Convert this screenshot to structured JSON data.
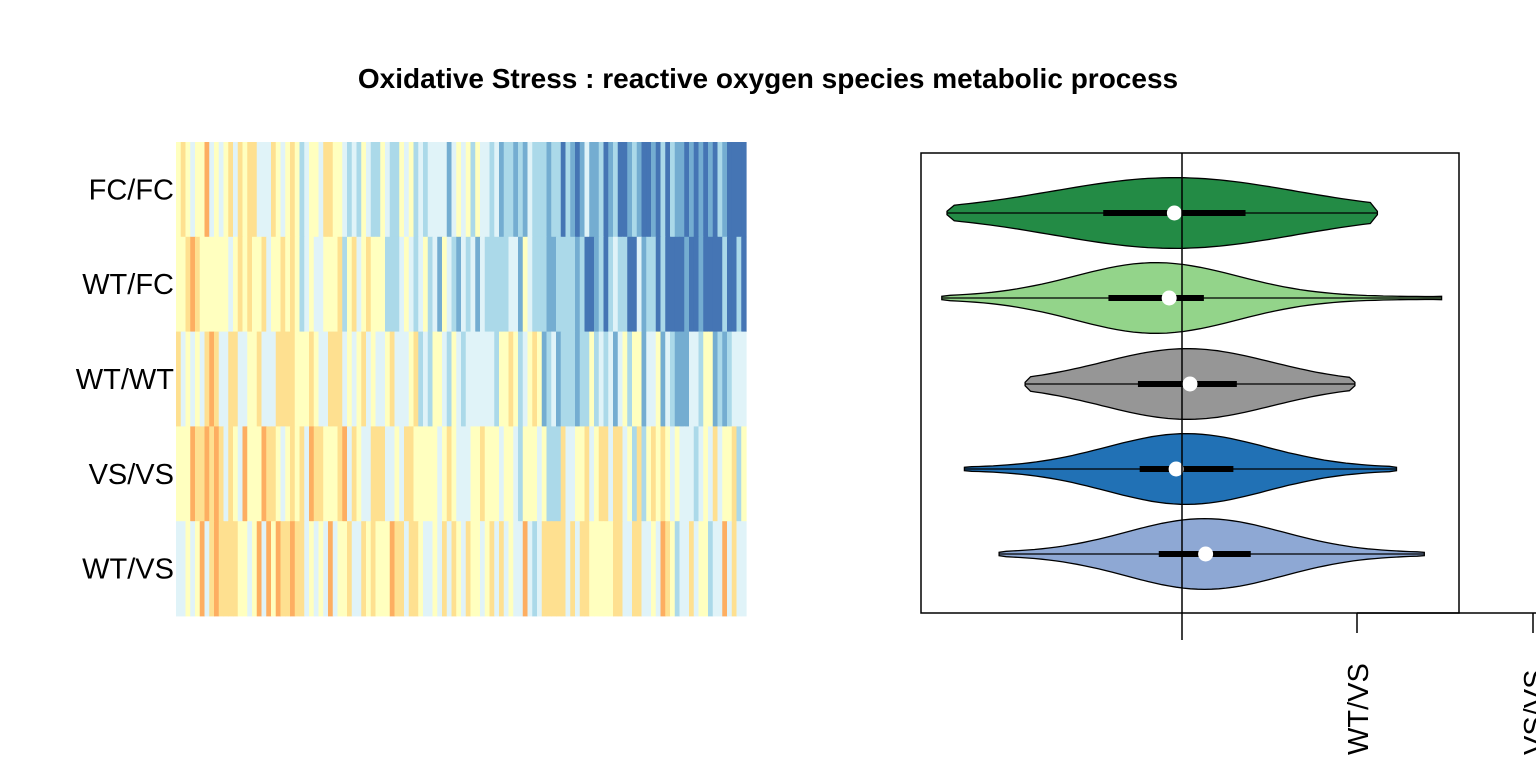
{
  "title": "Oxidative Stress : reactive oxygen species metabolic process",
  "palette": {
    "diverging": [
      "#d73027",
      "#f46d43",
      "#fdae61",
      "#fee090",
      "#ffffbf",
      "#e0f3f8",
      "#abd9e9",
      "#74add1",
      "#4575b4"
    ]
  },
  "chart_data": [
    {
      "type": "heatmap",
      "rows": [
        "FC/FC",
        "WT/FC",
        "WT/WT",
        "VS/VS",
        "WT/VS"
      ],
      "n_columns": 120,
      "values": "per-gene expression scores (one stripe per gene); predominantly warm (high) values on the left, cool (low) values on the right for FC/FC and WT/FC",
      "color_scale": "RdYlBu diverging"
    },
    {
      "type": "violin",
      "orientation": "horizontal",
      "series": [
        {
          "name": "FC/FC",
          "color": "#238b45",
          "min": -1.35,
          "q1": -0.45,
          "median": -0.04,
          "q3": 0.37,
          "max": 1.13
        },
        {
          "name": "WT/FC",
          "color": "#93d48a",
          "min": -1.38,
          "q1": -0.42,
          "median": -0.07,
          "q3": 0.13,
          "max": 1.5
        },
        {
          "name": "WT/WT",
          "color": "#969696",
          "min": -0.9,
          "q1": -0.25,
          "median": 0.05,
          "q3": 0.32,
          "max": 1.0
        },
        {
          "name": "VS/VS",
          "color": "#2171b5",
          "min": -1.25,
          "q1": -0.24,
          "median": -0.03,
          "q3": 0.3,
          "max": 1.24
        },
        {
          "name": "WT/VS",
          "color": "#8ea8d4",
          "min": -1.05,
          "q1": -0.13,
          "median": 0.14,
          "q3": 0.4,
          "max": 1.4
        }
      ],
      "reference_line": 0,
      "xlim": [
        -1.5,
        1.6
      ],
      "axis_tick_labels": [
        "WT/VS",
        "VS/VS"
      ]
    }
  ]
}
